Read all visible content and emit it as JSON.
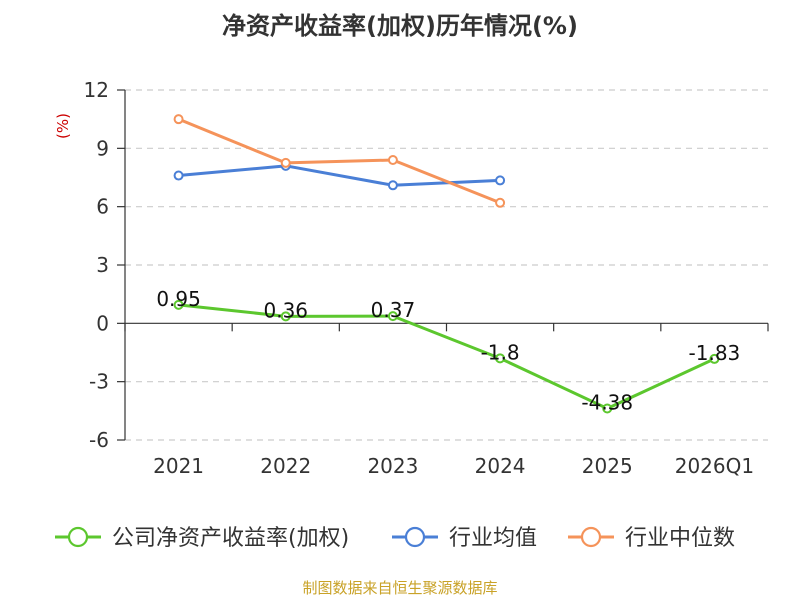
{
  "chart_data": {
    "type": "line",
    "title": "净资产收益率(加权)历年情况(%)",
    "ylabel": "(%)",
    "xlabel": "",
    "categories": [
      "2021",
      "2022",
      "2023",
      "2024",
      "2025",
      "2026Q1"
    ],
    "ylim": [
      -6,
      12
    ],
    "yticks": [
      12,
      9,
      6,
      3,
      0,
      -3,
      -6
    ],
    "grid": true,
    "legend_position": "bottom",
    "series": [
      {
        "name": "公司净资产收益率(加权)",
        "color": "#5cc72e",
        "values": [
          0.95,
          0.36,
          0.37,
          -1.8,
          -4.38,
          -1.83
        ],
        "labels": [
          "0.95",
          "0.36",
          "0.37",
          "-1.8",
          "-4.38",
          "-1.83"
        ]
      },
      {
        "name": "行业均值",
        "color": "#4a7fd6",
        "values": [
          7.6,
          8.1,
          7.1,
          7.35,
          null,
          null
        ]
      },
      {
        "name": "行业中位数",
        "color": "#f5935a",
        "values": [
          10.5,
          8.25,
          8.4,
          6.2,
          null,
          null
        ]
      }
    ]
  },
  "footer": {
    "source": "制图数据来自恒生聚源数据库"
  }
}
